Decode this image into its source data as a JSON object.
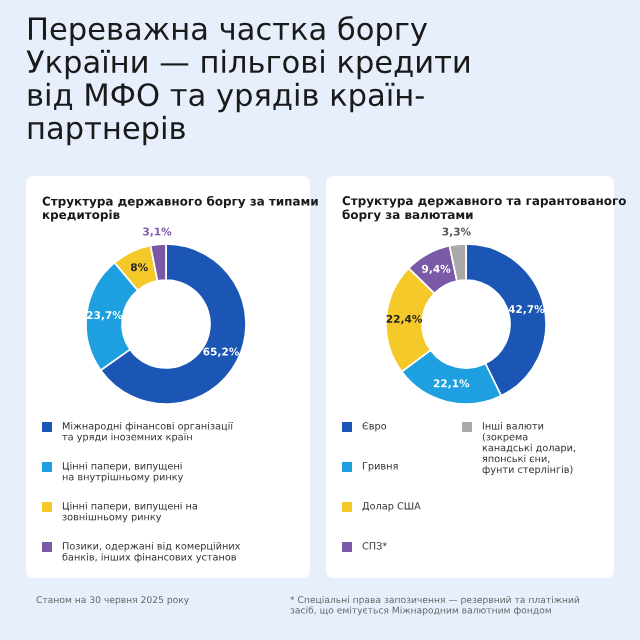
{
  "chart_data": [
    {
      "type": "donut",
      "title": "Структура державного боргу за типами\nкредиторів",
      "annotations": [
        "Переважна частка боргу\nУкраїни — пільгові кредити\nвід МФО та урядів країн-\nпартнерів",
        "Станом на 30 червня 2025 року"
      ],
      "categories": [
        "Міжнародні фінансові організації\nта уряди іноземних країн",
        "Цінні папери, випущені\nна внутрішньому ринку",
        "Цінні папери, випущені на\nзовнішньому ринку",
        "Позики, одержані від комерційних\nбанків, інших фінансових установ"
      ],
      "values": [
        65.2,
        23.7,
        8,
        3.1
      ],
      "value_labels": [
        "65,2%",
        "23,7%",
        "8%",
        "3,1%"
      ],
      "colors": [
        "#1b56b5",
        "#1d9fe0",
        "#f6c92b",
        "#7a5aa6"
      ],
      "legend": "bottom"
    },
    {
      "type": "donut",
      "title": "Структура державного та гарантованого\nборгу за валютами",
      "annotations": [
        "* Спеціальні права запозичення — резервний та платіжний\nзасіб, що емітується Міжнародним валютним фондом"
      ],
      "categories": [
        "Євро",
        "Гривня",
        "Долар США",
        "СПЗ*",
        "Інші валюти\n(зокрема\nканадські долари,\nяпонські єни,\nфунти стерлінгів)"
      ],
      "values": [
        42.7,
        22.1,
        22.4,
        9.4,
        3.3
      ],
      "value_labels": [
        "42,7%",
        "22,1%",
        "22,4%",
        "9,4%",
        "3,3%"
      ],
      "colors": [
        "#1b56b5",
        "#1d9fe0",
        "#f6c92b",
        "#7a5aa6",
        "#a9a9a9"
      ],
      "legend": "bottom"
    }
  ]
}
